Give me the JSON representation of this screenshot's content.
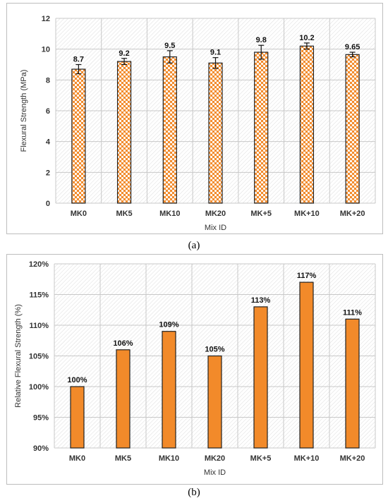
{
  "figure": {
    "caption_a": "(a)",
    "caption_b": "(b)"
  },
  "colors": {
    "bar": "#f28a2a",
    "bar_stroke": "#222222",
    "grid": "#c8c8c8",
    "plot_bg_hatch": "#dcdcdc"
  },
  "chart_data": [
    {
      "type": "bar",
      "categories": [
        "MK0",
        "MK5",
        "MK10",
        "MK20",
        "MK+5",
        "MK+10",
        "MK+20"
      ],
      "values": [
        8.7,
        9.2,
        9.5,
        9.1,
        9.8,
        10.2,
        9.65
      ],
      "data_labels": [
        "8.7",
        "9.2",
        "9.5",
        "9.1",
        "9.8",
        "10.2",
        "9.65"
      ],
      "error": [
        0.3,
        0.2,
        0.4,
        0.35,
        0.45,
        0.2,
        0.15
      ],
      "title": "",
      "xlabel": "Mix ID",
      "ylabel": "Flexural Strength (MPa)",
      "ylim": [
        0,
        12
      ],
      "yticks": [
        0,
        2,
        4,
        6,
        8,
        10,
        12
      ],
      "ytick_labels": [
        "0",
        "2",
        "4",
        "6",
        "8",
        "10",
        "12"
      ],
      "grid": true,
      "bar_fill": "dotted"
    },
    {
      "type": "bar",
      "categories": [
        "MK0",
        "MK5",
        "MK10",
        "MK20",
        "MK+5",
        "MK+10",
        "MK+20"
      ],
      "values": [
        100,
        106,
        109,
        105,
        113,
        117,
        111
      ],
      "data_labels": [
        "100%",
        "106%",
        "109%",
        "105%",
        "113%",
        "117%",
        "111%"
      ],
      "title": "",
      "xlabel": "Mix ID",
      "ylabel": "Relative Flexural Strength (%)",
      "ylim": [
        90,
        120
      ],
      "yticks": [
        90,
        95,
        100,
        105,
        110,
        115,
        120
      ],
      "ytick_labels": [
        "90%",
        "95%",
        "100%",
        "105%",
        "110%",
        "115%",
        "120%"
      ],
      "grid": true,
      "bar_fill": "solid"
    }
  ]
}
